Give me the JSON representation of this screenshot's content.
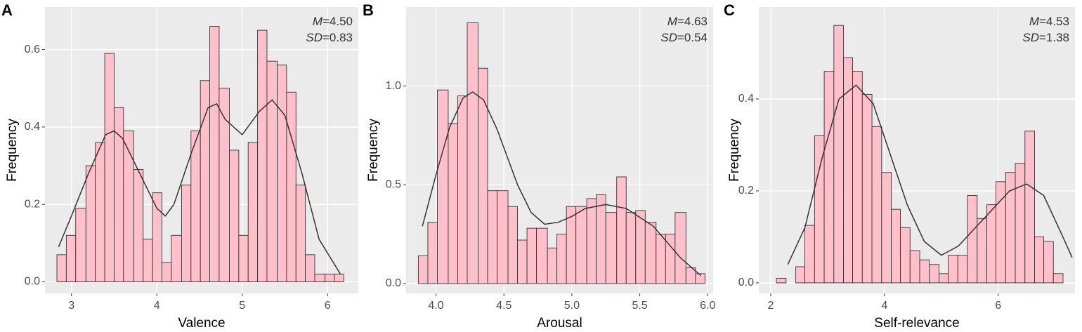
{
  "chart_data": [
    {
      "type": "histogram",
      "panel_label": "A",
      "xlabel": "Valence",
      "ylabel": "Frequency",
      "annotations": [
        "M=4.50",
        "SD=0.83"
      ],
      "color": "#ffc0cb",
      "grid": true,
      "bins": [
        2.83,
        2.94,
        3.05,
        3.17,
        3.28,
        3.39,
        3.5,
        3.61,
        3.73,
        3.84,
        3.95,
        4.06,
        4.17,
        4.29,
        4.4,
        4.51,
        4.62,
        4.73,
        4.85,
        4.96,
        5.07,
        5.18,
        5.29,
        5.41,
        5.52,
        5.63,
        5.74,
        5.85,
        5.97,
        6.08,
        6.19
      ],
      "counts": [
        0.07,
        0.12,
        0.19,
        0.3,
        0.36,
        0.59,
        0.45,
        0.39,
        0.29,
        0.11,
        0.23,
        0.05,
        0.12,
        0.25,
        0.39,
        0.52,
        0.66,
        0.5,
        0.34,
        0.12,
        0.36,
        0.65,
        0.57,
        0.56,
        0.49,
        0.25,
        0.07,
        0.02,
        0.02,
        0.02
      ],
      "curve": {
        "x": [
          2.85,
          3.0,
          3.2,
          3.4,
          3.5,
          3.6,
          3.8,
          4.0,
          4.1,
          4.2,
          4.4,
          4.6,
          4.7,
          4.8,
          5.0,
          5.2,
          5.35,
          5.5,
          5.7,
          5.9,
          6.15
        ],
        "y": [
          0.09,
          0.17,
          0.28,
          0.38,
          0.39,
          0.37,
          0.28,
          0.19,
          0.17,
          0.2,
          0.33,
          0.45,
          0.46,
          0.42,
          0.38,
          0.44,
          0.47,
          0.43,
          0.28,
          0.11,
          0.02
        ]
      },
      "xlim": [
        2.69,
        6.36
      ],
      "ylim": [
        -0.03,
        0.71
      ],
      "xticks": [
        3,
        4,
        5,
        6
      ],
      "yticks": [
        {
          "value": 0,
          "label": "0.0"
        },
        0.2,
        0.4,
        0.6
      ]
    },
    {
      "type": "histogram",
      "panel_label": "B",
      "xlabel": "Arousal",
      "ylabel": "Frequency",
      "annotations": [
        "M=4.63",
        "SD=0.54"
      ],
      "color": "#ffc0cb",
      "grid": true,
      "bins": [
        3.87,
        3.94,
        4.01,
        4.09,
        4.16,
        4.23,
        4.31,
        4.38,
        4.45,
        4.53,
        4.6,
        4.67,
        4.74,
        4.82,
        4.89,
        4.96,
        5.03,
        5.11,
        5.18,
        5.25,
        5.33,
        5.4,
        5.47,
        5.54,
        5.62,
        5.69,
        5.76,
        5.84,
        5.91,
        5.98
      ],
      "counts": [
        0.14,
        0.31,
        0.98,
        0.81,
        0.95,
        1.32,
        1.09,
        0.47,
        0.47,
        0.39,
        0.22,
        0.28,
        0.28,
        0.18,
        0.25,
        0.39,
        0.39,
        0.43,
        0.45,
        0.36,
        0.54,
        0.36,
        0.37,
        0.31,
        0.25,
        0.25,
        0.36,
        0.08,
        0.05
      ],
      "curve": {
        "x": [
          3.9,
          4.0,
          4.1,
          4.2,
          4.27,
          4.35,
          4.45,
          4.6,
          4.7,
          4.8,
          4.9,
          5.0,
          5.1,
          5.25,
          5.4,
          5.6,
          5.8,
          5.95
        ],
        "y": [
          0.29,
          0.55,
          0.79,
          0.94,
          0.97,
          0.93,
          0.78,
          0.5,
          0.36,
          0.3,
          0.31,
          0.34,
          0.38,
          0.4,
          0.38,
          0.29,
          0.13,
          0.04
        ]
      },
      "xlim": [
        3.78,
        6.04
      ],
      "ylim": [
        -0.05,
        1.4
      ],
      "xticks": [
        {
          "value": 4,
          "label": "4.0"
        },
        4.5,
        {
          "value": 5,
          "label": "5.0"
        },
        5.5,
        {
          "value": 6,
          "label": "6.0"
        }
      ],
      "yticks": [
        {
          "value": 0,
          "label": "0.0"
        },
        0.5,
        {
          "value": 1,
          "label": "1.0"
        }
      ]
    },
    {
      "type": "histogram",
      "panel_label": "C",
      "xlabel": "Self-relevance",
      "ylabel": "Frequency",
      "annotations": [
        "M=4.53",
        "SD=1.38"
      ],
      "color": "#ffc0cb",
      "grid": true,
      "bins": [
        2.1,
        2.27,
        2.44,
        2.6,
        2.77,
        2.94,
        3.11,
        3.28,
        3.44,
        3.61,
        3.78,
        3.95,
        4.12,
        4.28,
        4.45,
        4.62,
        4.79,
        4.96,
        5.12,
        5.29,
        5.46,
        5.63,
        5.8,
        5.96,
        6.13,
        6.3,
        6.47,
        6.64,
        6.8,
        6.97,
        7.14
      ],
      "counts": [
        0.01,
        0,
        0.035,
        0.125,
        0.32,
        0.46,
        0.56,
        0.49,
        0.46,
        0.41,
        0.34,
        0.24,
        0.16,
        0.12,
        0.07,
        0.05,
        0.04,
        0.02,
        0.06,
        0.06,
        0.19,
        0.14,
        0.17,
        0.22,
        0.24,
        0.26,
        0.33,
        0.1,
        0.09,
        0.02
      ],
      "curve": {
        "x": [
          2.3,
          2.6,
          2.9,
          3.2,
          3.5,
          3.8,
          4.1,
          4.4,
          4.7,
          5.0,
          5.3,
          5.6,
          5.9,
          6.2,
          6.5,
          6.8,
          7.1,
          7.3
        ],
        "y": [
          0.04,
          0.12,
          0.27,
          0.4,
          0.43,
          0.39,
          0.28,
          0.17,
          0.09,
          0.06,
          0.08,
          0.12,
          0.16,
          0.2,
          0.215,
          0.19,
          0.11,
          0.055
        ]
      },
      "xlim": [
        1.79,
        7.35
      ],
      "ylim": [
        -0.023,
        0.6
      ],
      "xticks": [
        2,
        4,
        6
      ],
      "yticks": [
        {
          "value": 0,
          "label": "0.0"
        },
        0.2,
        0.4
      ]
    }
  ]
}
